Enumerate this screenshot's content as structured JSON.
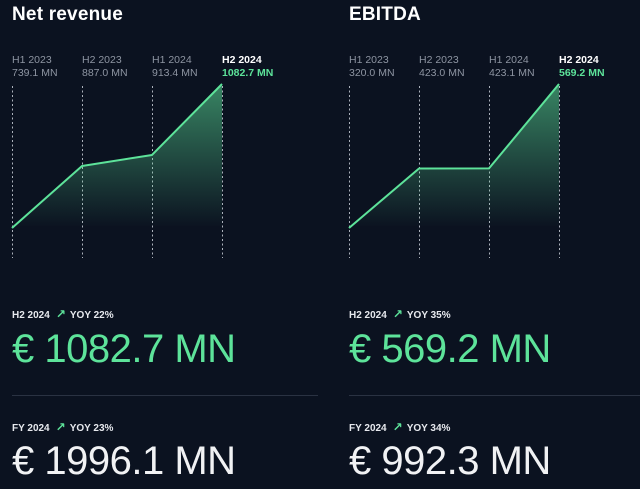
{
  "colors": {
    "accent": "#5de39a",
    "background": "#0b1220",
    "muted": "#8e95a2"
  },
  "panels": [
    {
      "title": "Net revenue",
      "columns": [
        {
          "period": "H1 2023",
          "value": "739.1 MN"
        },
        {
          "period": "H2 2023",
          "value": "887.0 MN"
        },
        {
          "period": "H1 2024",
          "value": "913.4 MN"
        },
        {
          "period": "H2 2024",
          "value": "1082.7 MN"
        }
      ],
      "half_year": {
        "label": "H2 2024",
        "arrow_icon": "arrow-up-right-icon",
        "yoy": "YOY 22%",
        "value": "€ 1082.7 MN"
      },
      "full_year": {
        "label": "FY 2024",
        "arrow_icon": "arrow-up-right-icon",
        "yoy": "YOY 23%",
        "value": "€ 1996.1 MN"
      }
    },
    {
      "title": "EBITDA",
      "columns": [
        {
          "period": "H1 2023",
          "value": "320.0 MN"
        },
        {
          "period": "H2 2023",
          "value": "423.0 MN"
        },
        {
          "period": "H1 2024",
          "value": "423.1 MN"
        },
        {
          "period": "H2 2024",
          "value": "569.2 MN"
        }
      ],
      "half_year": {
        "label": "H2 2024",
        "arrow_icon": "arrow-up-right-icon",
        "yoy": "YOY 35%",
        "value": "€ 569.2 MN"
      },
      "full_year": {
        "label": "FY 2024",
        "arrow_icon": "arrow-up-right-icon",
        "yoy": "YOY 34%",
        "value": "€ 992.3 MN"
      }
    }
  ],
  "chart_data": [
    {
      "type": "area",
      "categories": [
        "H1 2023",
        "H2 2023",
        "H1 2024",
        "H2 2024"
      ],
      "values": [
        739.1,
        887.0,
        913.4,
        1082.7
      ]
    },
    {
      "type": "area",
      "categories": [
        "H1 2023",
        "H2 2023",
        "H1 2024",
        "H2 2024"
      ],
      "values": [
        320.0,
        423.0,
        423.1,
        569.2
      ]
    }
  ]
}
